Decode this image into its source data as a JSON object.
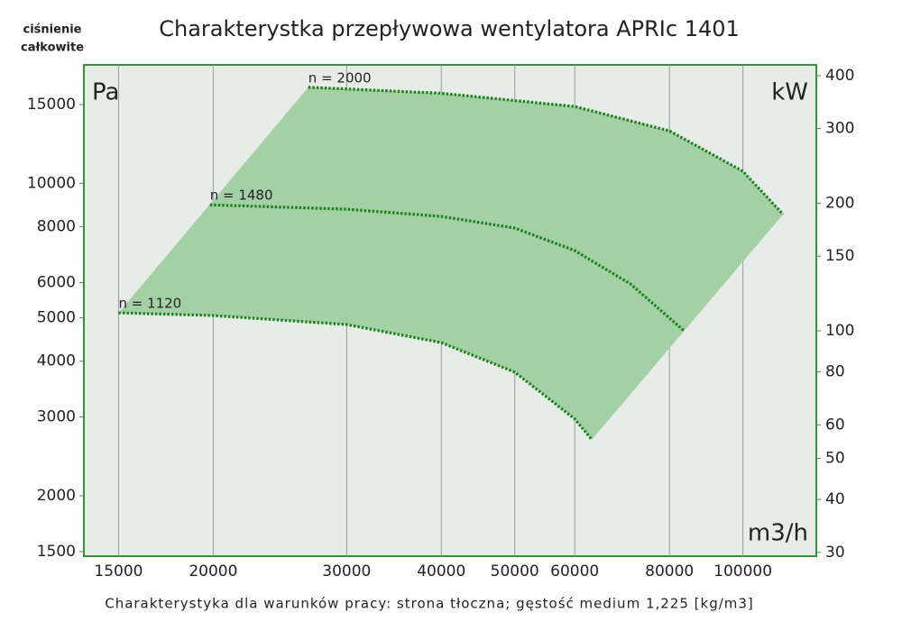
{
  "chart_data": {
    "type": "line",
    "title": "Charakterystka przepływowa wentylatora APRIc 1401",
    "corner_label_lines": [
      "ciśnienie",
      "całkowite"
    ],
    "y_unit": "Pa",
    "y2_unit": "kW",
    "x_unit": "m3/h",
    "footnote": "Charakterystyka dla warunków pracy: strona tłoczna; gęstość medium 1,225 [kg/m3]",
    "x_log": true,
    "y_log": true,
    "y2_log": true,
    "grid": "x",
    "area_color": "#a3d0a4",
    "xlim": [
      13500,
      125000
    ],
    "ylim": [
      1465,
      18400
    ],
    "y2lim": [
      29.4,
      424
    ],
    "xticks": [
      15000,
      20000,
      30000,
      40000,
      50000,
      60000,
      80000,
      100000
    ],
    "yticks": [
      1500,
      2000,
      3000,
      4000,
      5000,
      6000,
      8000,
      10000,
      15000
    ],
    "y2ticks": [
      30,
      40,
      50,
      60,
      80,
      100,
      150,
      200,
      300,
      400
    ],
    "series": [
      {
        "name": "n = 1120",
        "color": "#17851a",
        "x": [
          15000,
          20000,
          30000,
          40000,
          50000,
          60000,
          63200
        ],
        "values": [
          5130,
          5060,
          4830,
          4400,
          3780,
          2970,
          2670
        ]
      },
      {
        "name": "n = 1480",
        "color": "#17851a",
        "x": [
          19800,
          30000,
          40000,
          50000,
          60000,
          71100,
          83600
        ],
        "values": [
          8950,
          8750,
          8430,
          7940,
          7070,
          5950,
          4680
        ]
      },
      {
        "name": "n = 2000",
        "color": "#17851a",
        "x": [
          26700,
          40000,
          60000,
          80000,
          100000,
          113000
        ],
        "values": [
          16400,
          15900,
          14850,
          13100,
          10640,
          8520
        ]
      }
    ]
  }
}
